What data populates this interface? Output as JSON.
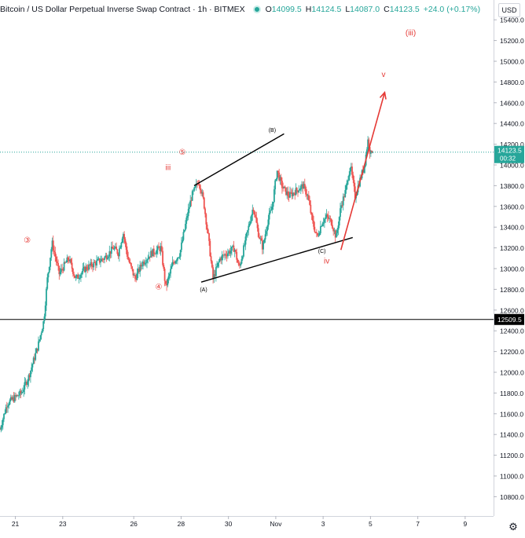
{
  "header": {
    "title": "Bitcoin / US Dollar Perpetual Inverse Swap Contract · 1h · BITMEX",
    "o_label": "O",
    "o_value": "14099.5",
    "h_label": "H",
    "h_value": "14124.5",
    "l_label": "L",
    "l_value": "14087.0",
    "c_label": "C",
    "c_value": "14123.5",
    "change": "+24.0 (+0.17%)"
  },
  "currency_button": "USD",
  "settings_icon": "gear-icon",
  "price_tag": {
    "price": "14123.5",
    "countdown": "00:32"
  },
  "level_tag": "12509.5",
  "colors": {
    "up": "#26a69a",
    "down": "#ef5350",
    "annotation": "#e53935",
    "line": "#000000"
  },
  "chart_data": {
    "type": "candlestick",
    "ylim": [
      10600,
      15600
    ],
    "yticks": [
      10800,
      11000,
      11200,
      11400,
      11600,
      11800,
      12000,
      12200,
      12400,
      12600,
      12800,
      13000,
      13200,
      13400,
      13600,
      13800,
      14000,
      14200,
      14400,
      14600,
      14800,
      15000,
      15200,
      15400
    ],
    "xticks": [
      {
        "label": "21",
        "t": 20.65
      },
      {
        "label": "23",
        "t": 22.65
      },
      {
        "label": "26",
        "t": 25.65
      },
      {
        "label": "28",
        "t": 27.65
      },
      {
        "label": "30",
        "t": 29.65
      },
      {
        "label": "Nov",
        "t": 31.65
      },
      {
        "label": "3",
        "t": 33.65
      },
      {
        "label": "5",
        "t": 35.65
      },
      {
        "label": "7",
        "t": 37.65
      },
      {
        "label": "9",
        "t": 39.65
      }
    ],
    "horizontal_line": 12509.5,
    "last_price": 14123.5,
    "price_path": [
      [
        20.0,
        11450
      ],
      [
        20.3,
        11700
      ],
      [
        20.6,
        11750
      ],
      [
        20.9,
        11800
      ],
      [
        21.2,
        11950
      ],
      [
        21.4,
        12100
      ],
      [
        21.6,
        12250
      ],
      [
        21.85,
        12500
      ],
      [
        22.0,
        12900
      ],
      [
        22.2,
        13250
      ],
      [
        22.5,
        12950
      ],
      [
        22.9,
        13100
      ],
      [
        23.2,
        12900
      ],
      [
        23.6,
        13000
      ],
      [
        24.0,
        13050
      ],
      [
        24.4,
        13100
      ],
      [
        24.8,
        13200
      ],
      [
        25.0,
        13150
      ],
      [
        25.2,
        13350
      ],
      [
        25.4,
        13100
      ],
      [
        25.7,
        12900
      ],
      [
        26.0,
        13050
      ],
      [
        26.4,
        13150
      ],
      [
        26.8,
        13200
      ],
      [
        27.0,
        12820
      ],
      [
        27.3,
        13050
      ],
      [
        27.6,
        13150
      ],
      [
        27.9,
        13500
      ],
      [
        28.1,
        13700
      ],
      [
        28.4,
        13850
      ],
      [
        28.6,
        13650
      ],
      [
        28.8,
        13300
      ],
      [
        29.0,
        12900
      ],
      [
        29.3,
        13100
      ],
      [
        29.6,
        13150
      ],
      [
        29.9,
        13200
      ],
      [
        30.1,
        13000
      ],
      [
        30.4,
        13300
      ],
      [
        30.7,
        13600
      ],
      [
        30.9,
        13350
      ],
      [
        31.1,
        13200
      ],
      [
        31.3,
        13450
      ],
      [
        31.5,
        13600
      ],
      [
        31.7,
        13950
      ],
      [
        31.9,
        13800
      ],
      [
        32.2,
        13700
      ],
      [
        32.5,
        13750
      ],
      [
        32.8,
        13800
      ],
      [
        33.0,
        13700
      ],
      [
        33.2,
        13450
      ],
      [
        33.4,
        13300
      ],
      [
        33.6,
        13450
      ],
      [
        33.8,
        13500
      ],
      [
        34.0,
        13450
      ],
      [
        34.2,
        13300
      ],
      [
        34.4,
        13600
      ],
      [
        34.6,
        13750
      ],
      [
        34.8,
        14000
      ],
      [
        35.0,
        13700
      ],
      [
        35.2,
        13850
      ],
      [
        35.4,
        14000
      ],
      [
        35.55,
        14250
      ],
      [
        35.65,
        14100
      ],
      [
        35.75,
        14123.5
      ]
    ],
    "trendlines": [
      {
        "from": [
          28.2,
          13800
        ],
        "to": [
          32.0,
          14300
        ]
      },
      {
        "from": [
          28.5,
          12870
        ],
        "to": [
          34.9,
          13300
        ]
      }
    ],
    "arrow": {
      "from": [
        34.4,
        13180
      ],
      "to": [
        36.25,
        14700
      ]
    },
    "wave_labels": [
      {
        "text": "③",
        "t": 21.15,
        "price": 13250,
        "color": "red",
        "size": 10
      },
      {
        "text": "④",
        "t": 26.7,
        "price": 12800,
        "color": "red",
        "size": 10
      },
      {
        "text": "⑤",
        "t": 27.7,
        "price": 14100,
        "color": "red",
        "size": 10
      },
      {
        "text": "iii",
        "t": 27.1,
        "price": 13950,
        "color": "red",
        "size": 10
      },
      {
        "text": "(B)",
        "t": 31.5,
        "price": 14320,
        "color": "black",
        "size": 7
      },
      {
        "text": "(A)",
        "t": 28.6,
        "price": 12780,
        "color": "black",
        "size": 7
      },
      {
        "text": "(C)",
        "t": 33.6,
        "price": 13150,
        "color": "black",
        "size": 7
      },
      {
        "text": "iv",
        "t": 33.8,
        "price": 13050,
        "color": "red",
        "size": 10
      },
      {
        "text": "v",
        "t": 36.2,
        "price": 14850,
        "color": "red",
        "size": 10
      },
      {
        "text": "(iii)",
        "t": 37.35,
        "price": 15250,
        "color": "red",
        "size": 10
      }
    ]
  }
}
